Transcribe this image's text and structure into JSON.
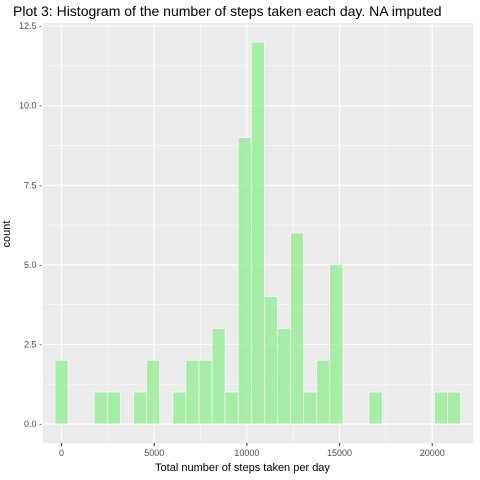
{
  "chart_data": {
    "type": "bar",
    "title": "Plot 3: Histogram of the number of steps taken each day. NA imputed",
    "xlabel": "Total number of steps taken per day",
    "ylabel": "count",
    "bin_width": 706,
    "bins": [
      {
        "x": 0,
        "count": 2
      },
      {
        "x": 706,
        "count": 0
      },
      {
        "x": 1412,
        "count": 0
      },
      {
        "x": 2118,
        "count": 1
      },
      {
        "x": 2824,
        "count": 1
      },
      {
        "x": 3530,
        "count": 0
      },
      {
        "x": 4236,
        "count": 1
      },
      {
        "x": 4942,
        "count": 2
      },
      {
        "x": 5648,
        "count": 0
      },
      {
        "x": 6354,
        "count": 1
      },
      {
        "x": 7060,
        "count": 2
      },
      {
        "x": 7766,
        "count": 2
      },
      {
        "x": 8472,
        "count": 3
      },
      {
        "x": 9178,
        "count": 1
      },
      {
        "x": 9884,
        "count": 9
      },
      {
        "x": 10590,
        "count": 12
      },
      {
        "x": 11296,
        "count": 4
      },
      {
        "x": 12002,
        "count": 3
      },
      {
        "x": 12708,
        "count": 6
      },
      {
        "x": 13414,
        "count": 1
      },
      {
        "x": 14120,
        "count": 2
      },
      {
        "x": 14826,
        "count": 5
      },
      {
        "x": 15532,
        "count": 0
      },
      {
        "x": 16238,
        "count": 0
      },
      {
        "x": 16944,
        "count": 1
      },
      {
        "x": 17650,
        "count": 0
      },
      {
        "x": 18356,
        "count": 0
      },
      {
        "x": 19062,
        "count": 0
      },
      {
        "x": 19768,
        "count": 0
      },
      {
        "x": 20474,
        "count": 1
      },
      {
        "x": 21180,
        "count": 1
      }
    ],
    "xlim": [
      -1000,
      22200
    ],
    "ylim": [
      -0.6,
      12.6
    ],
    "x_ticks": [
      0,
      5000,
      10000,
      15000,
      20000
    ],
    "x_tick_labels": [
      "0",
      "5000",
      "10000",
      "15000",
      "20000"
    ],
    "y_ticks": [
      0,
      2.5,
      5,
      7.5,
      10,
      12.5
    ],
    "y_tick_labels": [
      "0.0 -",
      "2.5 -",
      "5.0 -",
      "7.5 -",
      "10.0 -",
      "12.5 -"
    ],
    "grid": true,
    "bar_fill": "#90ee90",
    "bar_edge": "#ffffff",
    "bar_opacity": 0.75,
    "panel_background": "#ebebeb",
    "grid_color": "#ffffff"
  }
}
